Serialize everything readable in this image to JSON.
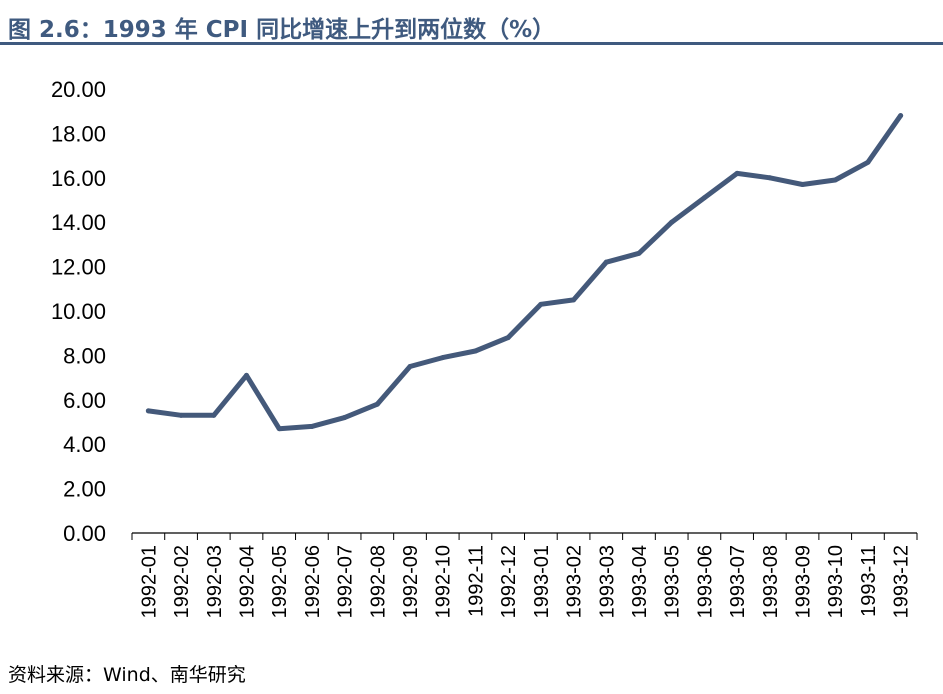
{
  "title": "图 2.6：1993 年 CPI 同比增速上升到两位数（%）",
  "source": "资料来源：Wind、南华研究",
  "colors": {
    "line": "#44597a",
    "accent": "#3f5a7f",
    "axis": "#000000"
  },
  "chart_data": {
    "type": "line",
    "title": "图 2.6：1993 年 CPI 同比增速上升到两位数（%）",
    "xlabel": "",
    "ylabel": "",
    "ylim": [
      0,
      20
    ],
    "yticks": [
      "0.00",
      "2.00",
      "4.00",
      "6.00",
      "8.00",
      "10.00",
      "12.00",
      "14.00",
      "16.00",
      "18.00",
      "20.00"
    ],
    "grid": false,
    "legend": "none",
    "categories": [
      "1992-01",
      "1992-02",
      "1992-03",
      "1992-04",
      "1992-05",
      "1992-06",
      "1992-07",
      "1992-08",
      "1992-09",
      "1992-10",
      "1992-11",
      "1992-12",
      "1993-01",
      "1993-02",
      "1993-03",
      "1993-04",
      "1993-05",
      "1993-06",
      "1993-07",
      "1993-08",
      "1993-09",
      "1993-10",
      "1993-11",
      "1993-12"
    ],
    "series": [
      {
        "values": [
          5.5,
          5.3,
          5.3,
          7.1,
          4.7,
          4.8,
          5.2,
          5.8,
          7.5,
          7.9,
          8.2,
          8.8,
          10.3,
          10.5,
          12.2,
          12.6,
          14.0,
          15.1,
          16.2,
          16.0,
          15.7,
          15.9,
          16.7,
          18.8
        ]
      }
    ]
  }
}
